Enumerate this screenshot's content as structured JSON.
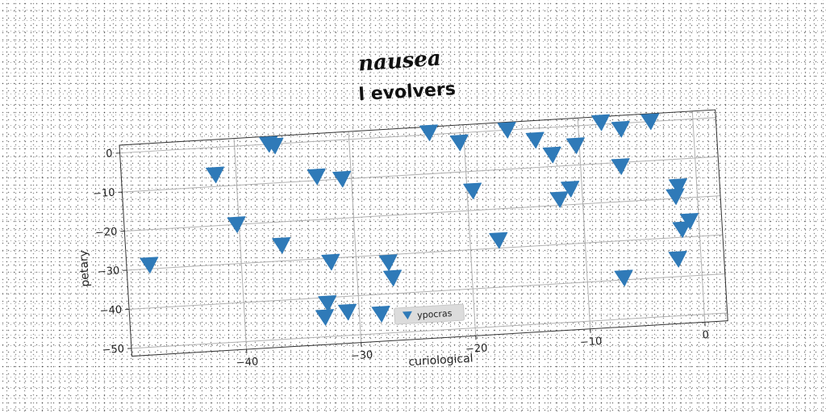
{
  "figure": {
    "super_title": "nausea"
  },
  "colors": {
    "marker": "#2f7ab8",
    "grid": "#b0b0b0",
    "frame": "#333333"
  },
  "chart_data": {
    "type": "scatter",
    "title": "l evolvers",
    "xlabel": "curiological",
    "ylabel": "petary",
    "xlim": [
      -50,
      2
    ],
    "ylim": [
      -52,
      2
    ],
    "x_ticks": [
      -40,
      -30,
      -20,
      -10,
      0
    ],
    "y_ticks": [
      0,
      -10,
      -20,
      -30,
      -40,
      -50
    ],
    "x_tick_labels": [
      "−40",
      "−30",
      "−20",
      "−10",
      "0"
    ],
    "y_tick_labels": [
      "0",
      "−10",
      "−20",
      "−30",
      "−40",
      "−50"
    ],
    "grid": true,
    "legend_position": "bottom-center",
    "marker": "triangle-down",
    "series": [
      {
        "name": "ypocras",
        "x": [
          -41.8,
          -40.2,
          -37.0,
          -36.5,
          -33.0,
          -30.8,
          -23.0,
          -20.4,
          -16.2,
          -13.8,
          -12.4,
          -10.3,
          -8.0,
          -6.3,
          -3.7,
          -48.0,
          -36.4,
          -32.2,
          -31.0,
          -27.2,
          -26.9,
          -28.1,
          -17.5,
          -11.0,
          -6.5,
          -19.5,
          -12.0,
          -1.9,
          -1.6,
          -0.8,
          -1.5,
          -2.0,
          -6.8,
          -32.7,
          -33.0
        ],
        "y": [
          -7.0,
          -20.0,
          0.0,
          -0.5,
          -9.0,
          -10.0,
          0.5,
          -2.5,
          0.0,
          -3.0,
          -7.0,
          -5.0,
          0.5,
          -1.5,
          0.0,
          -29.0,
          -26.0,
          -31.0,
          -44.0,
          -32.0,
          -36.0,
          -45.0,
          -28.0,
          -16.0,
          -11.0,
          -15.0,
          -18.5,
          -19.5,
          -17.0,
          -26.0,
          -28.0,
          -35.5,
          -39.5,
          -41.5,
          -45.0
        ]
      }
    ]
  }
}
